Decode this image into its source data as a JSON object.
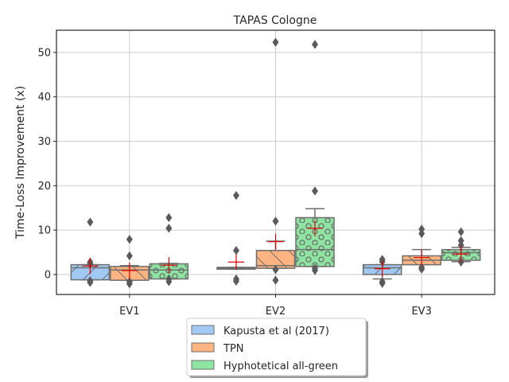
{
  "chart_data": {
    "type": "box",
    "title": "TAPAS Cologne",
    "ylabel": "Time-Loss Improvement (x)",
    "xlabel": "",
    "categories": [
      "EV1",
      "EV2",
      "EV3"
    ],
    "ylim": [
      -4.5,
      55
    ],
    "yticks": [
      0,
      10,
      20,
      30,
      40,
      50
    ],
    "grid": true,
    "legend_position": "bottom-center",
    "mean_marker": "red plus",
    "series": [
      {
        "name": "Kapusta et al (2017)",
        "color": "#a1c9f4",
        "hatch": "diagonal",
        "boxes": [
          {
            "q1": -1.2,
            "median": 1.5,
            "q3": 2.2,
            "whisker_low": -1.2,
            "whisker_high": 2.2,
            "mean": 1.9,
            "outliers": [
              11.8,
              2.8,
              2.4,
              -1.4,
              -1.8
            ]
          },
          {
            "q1": 1.2,
            "median": 1.4,
            "q3": 1.6,
            "whisker_low": 1.2,
            "whisker_high": 1.6,
            "mean": 2.8,
            "outliers": [
              17.8,
              5.4,
              -1.0,
              -1.5
            ]
          },
          {
            "q1": 0.0,
            "median": 1.5,
            "q3": 2.2,
            "whisker_low": -1.0,
            "whisker_high": 2.2,
            "mean": 1.3,
            "outliers": [
              3.4,
              2.9,
              -1.6,
              -2.0
            ]
          }
        ]
      },
      {
        "name": "TPN",
        "color": "#ffb482",
        "hatch": "diagonal-reverse",
        "boxes": [
          {
            "q1": -1.3,
            "median": 1.0,
            "q3": 1.8,
            "whisker_low": -1.3,
            "whisker_high": 2.0,
            "mean": 0.9,
            "outliers": [
              7.9,
              4.2,
              -1.6,
              -2.1
            ]
          },
          {
            "q1": 1.4,
            "median": 2.0,
            "q3": 5.4,
            "whisker_low": 1.4,
            "whisker_high": 7.5,
            "mean": 7.4,
            "outliers": [
              52.3,
              12.0,
              1.1,
              -1.3
            ]
          },
          {
            "q1": 2.2,
            "median": 3.2,
            "q3": 4.2,
            "whisker_low": 2.2,
            "whisker_high": 5.6,
            "mean": 3.8,
            "outliers": [
              10.2,
              9.2,
              1.6,
              1.2
            ]
          }
        ]
      },
      {
        "name": "Hyphotetical all-green",
        "color": "#8de5a1",
        "hatch": "circles",
        "boxes": [
          {
            "q1": -1.0,
            "median": 1.0,
            "q3": 2.4,
            "whisker_low": -1.0,
            "whisker_high": 2.5,
            "mean": 2.1,
            "outliers": [
              12.8,
              10.4,
              -1.0,
              -1.6
            ]
          },
          {
            "q1": 1.8,
            "median": 5.6,
            "q3": 12.8,
            "whisker_low": 1.8,
            "whisker_high": 14.8,
            "mean": 10.4,
            "outliers": [
              51.8,
              18.8,
              1.4,
              0.9
            ]
          },
          {
            "q1": 3.2,
            "median": 4.9,
            "q3": 5.6,
            "whisker_low": 2.9,
            "whisker_high": 6.1,
            "mean": 4.6,
            "outliers": [
              9.6,
              7.6,
              6.6,
              2.8
            ]
          }
        ]
      }
    ]
  }
}
